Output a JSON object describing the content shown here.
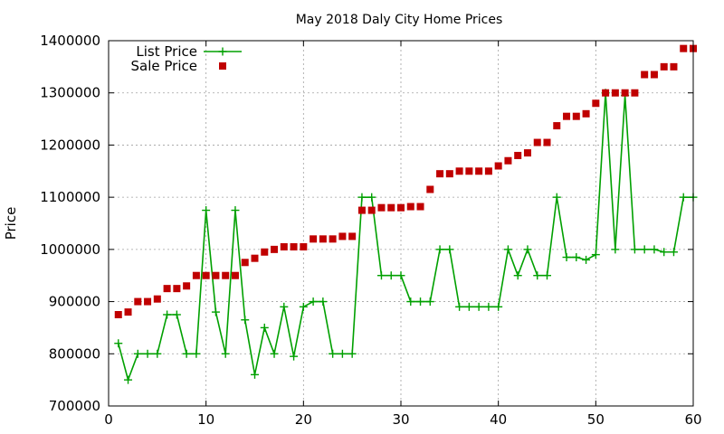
{
  "chart_data": {
    "type": "line",
    "title": "May 2018 Daly City Home Prices",
    "xlabel": "",
    "ylabel": "Price",
    "xlim": [
      0,
      60
    ],
    "ylim": [
      700000,
      1400000
    ],
    "xticks": [
      0,
      10,
      20,
      30,
      40,
      50,
      60
    ],
    "yticks": [
      700000,
      800000,
      900000,
      1000000,
      1100000,
      1200000,
      1300000,
      1400000
    ],
    "grid": true,
    "legend": "top-left",
    "x": [
      1,
      2,
      3,
      4,
      5,
      6,
      7,
      8,
      9,
      10,
      11,
      12,
      13,
      14,
      15,
      16,
      17,
      18,
      19,
      20,
      21,
      22,
      23,
      24,
      25,
      26,
      27,
      28,
      29,
      30,
      31,
      32,
      33,
      34,
      35,
      36,
      37,
      38,
      39,
      40,
      41,
      42,
      43,
      44,
      45,
      46,
      47,
      48,
      49,
      50,
      51,
      52,
      53,
      54,
      55,
      56,
      57,
      58,
      59,
      60
    ],
    "series": [
      {
        "name": "List Price",
        "style": "line-cross",
        "color": "#00a000",
        "values": [
          820000,
          750000,
          800000,
          800000,
          800000,
          875000,
          875000,
          800000,
          800000,
          1075000,
          880000,
          800000,
          1075000,
          865000,
          760000,
          850000,
          800000,
          890000,
          795000,
          890000,
          900000,
          900000,
          800000,
          800000,
          800000,
          1100000,
          1100000,
          950000,
          950000,
          950000,
          900000,
          900000,
          900000,
          1000000,
          1000000,
          890000,
          890000,
          890000,
          890000,
          890000,
          1000000,
          950000,
          1000000,
          950000,
          950000,
          1100000,
          985000,
          985000,
          980000,
          990000,
          1300000,
          1000000,
          1295000,
          1000000,
          1000000,
          1000000,
          995000,
          995000,
          1100000,
          1100000
        ]
      },
      {
        "name": "Sale Price",
        "style": "square",
        "color": "#c00000",
        "values": [
          875000,
          880000,
          900000,
          900000,
          905000,
          925000,
          925000,
          930000,
          950000,
          950000,
          950000,
          950000,
          950000,
          975000,
          983000,
          995000,
          1000000,
          1005000,
          1005000,
          1005000,
          1020000,
          1020000,
          1020000,
          1025000,
          1025000,
          1075000,
          1075000,
          1080000,
          1080000,
          1080000,
          1082000,
          1082000,
          1115000,
          1145000,
          1145000,
          1150000,
          1150000,
          1150000,
          1150000,
          1160000,
          1170000,
          1180000,
          1185000,
          1205000,
          1205000,
          1237000,
          1255000,
          1255000,
          1260000,
          1280000,
          1300000,
          1300000,
          1300000,
          1300000,
          1335000,
          1335000,
          1350000,
          1350000,
          1385000,
          1385000
        ]
      }
    ]
  }
}
